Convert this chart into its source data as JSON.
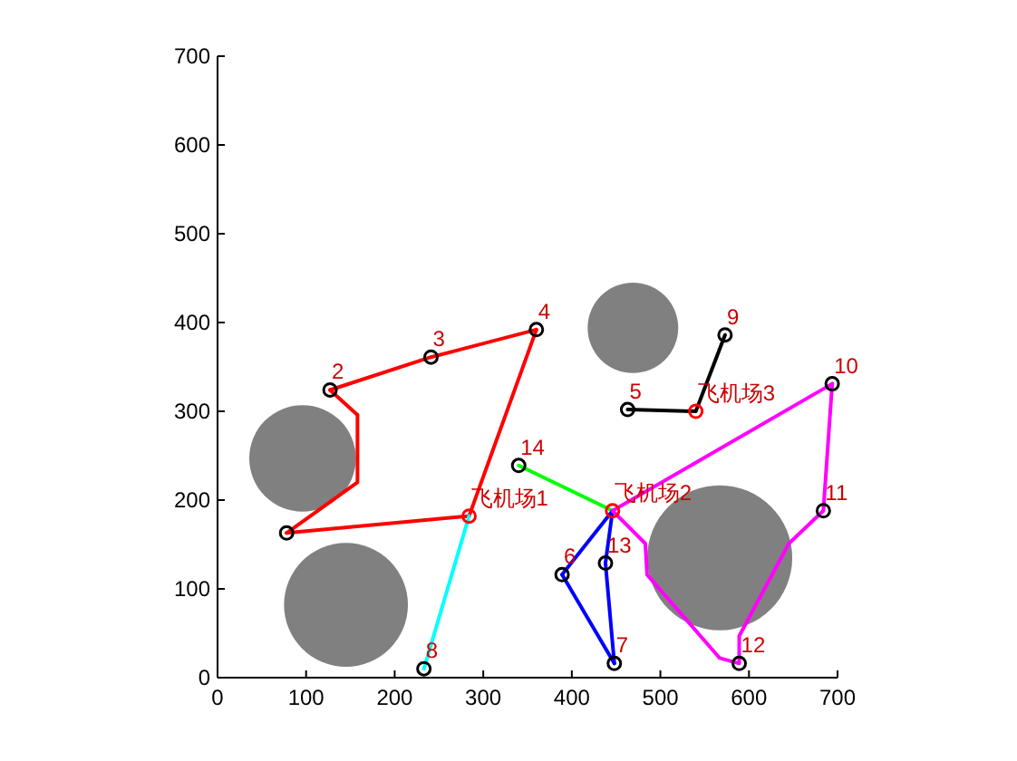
{
  "chart_data": {
    "type": "line",
    "xlim": [
      0,
      700
    ],
    "ylim": [
      0,
      700
    ],
    "xticks": [
      0,
      100,
      200,
      300,
      400,
      500,
      600,
      700
    ],
    "yticks": [
      0,
      100,
      200,
      300,
      400,
      500,
      600,
      700
    ],
    "grid": false,
    "series": [
      {
        "type": "bubble",
        "color": "#808080",
        "x": [
          96,
          145,
          469,
          567
        ],
        "values": [
          247,
          82,
          394,
          135
        ],
        "sizes": [
          0.54,
          0.73,
          0.39,
          1
        ]
      },
      {
        "color": "#ff0000",
        "marker": "none",
        "line_style": "solid",
        "x": [
          78,
          284
        ],
        "values": [
          163,
          182
        ]
      },
      {
        "color": "#ff0000",
        "marker": "none",
        "line_style": "solid",
        "x": [
          78,
          158,
          158
        ],
        "values": [
          163,
          220,
          296
        ]
      },
      {
        "color": "#ff0000",
        "marker": "none",
        "line_style": "solid",
        "x": [
          127,
          158
        ],
        "values": [
          324,
          296
        ]
      },
      {
        "color": "#ff0000",
        "marker": "none",
        "line_style": "solid",
        "x": [
          127,
          241,
          360
        ],
        "values": [
          324,
          361,
          392
        ]
      },
      {
        "color": "#ff0000",
        "marker": "none",
        "line_style": "solid",
        "x": [
          284,
          360
        ],
        "values": [
          182,
          392
        ]
      },
      {
        "color": "#00ffff",
        "marker": "none",
        "line_style": "solid",
        "x": [
          284,
          233
        ],
        "values": [
          182,
          10
        ]
      },
      {
        "color": "#00ff00",
        "marker": "none",
        "line_style": "solid",
        "x": [
          340,
          446
        ],
        "values": [
          239,
          188
        ]
      },
      {
        "color": "#0000ff",
        "marker": "none",
        "line_style": "solid",
        "x": [
          389,
          446
        ],
        "values": [
          116,
          188
        ]
      },
      {
        "color": "#0000ff",
        "marker": "none",
        "line_style": "solid",
        "x": [
          389,
          448
        ],
        "values": [
          116,
          16
        ]
      },
      {
        "color": "#0000ff",
        "marker": "none",
        "line_style": "solid",
        "x": [
          438,
          448
        ],
        "values": [
          129,
          16
        ]
      },
      {
        "color": "#0000ff",
        "marker": "none",
        "line_style": "solid",
        "x": [
          438,
          446
        ],
        "values": [
          129,
          188
        ]
      },
      {
        "color": "#000000",
        "marker": "none",
        "line_style": "solid",
        "x": [
          463,
          540,
          573
        ],
        "values": [
          302,
          300,
          386
        ]
      },
      {
        "color": "#ff00ff",
        "marker": "none",
        "line_style": "solid",
        "x": [
          446,
          694
        ],
        "values": [
          188,
          331
        ]
      },
      {
        "color": "#ff00ff",
        "marker": "none",
        "line_style": "solid",
        "x": [
          446,
          483,
          485,
          567,
          589,
          589,
          645,
          684,
          694
        ],
        "values": [
          188,
          151,
          116,
          22,
          16,
          47,
          151,
          188,
          331
        ]
      },
      {
        "type": "scatter",
        "color": "#000000",
        "marker": "circle",
        "x": [
          78,
          127,
          241,
          360,
          463,
          389,
          448,
          233,
          573,
          694,
          684,
          589,
          438,
          340
        ],
        "values": [
          163,
          324,
          361,
          392,
          302,
          116,
          16,
          10,
          386,
          331,
          188,
          16,
          129,
          239
        ]
      },
      {
        "type": "scatter",
        "color": "#ff0000",
        "marker": "circle",
        "x": [
          284,
          446,
          540
        ],
        "values": [
          182,
          188,
          300
        ]
      }
    ],
    "annotations": [
      {
        "text": "2",
        "x": 127,
        "y": 324
      },
      {
        "text": "3",
        "x": 241,
        "y": 361
      },
      {
        "text": "4",
        "x": 360,
        "y": 392
      },
      {
        "text": "5",
        "x": 463,
        "y": 302
      },
      {
        "text": "6",
        "x": 389,
        "y": 116
      },
      {
        "text": "7",
        "x": 448,
        "y": 16
      },
      {
        "text": "8",
        "x": 233,
        "y": 10
      },
      {
        "text": "9",
        "x": 573,
        "y": 386
      },
      {
        "text": "10",
        "x": 694,
        "y": 331
      },
      {
        "text": "11",
        "x": 684,
        "y": 188
      },
      {
        "text": "12",
        "x": 589,
        "y": 16
      },
      {
        "text": "13",
        "x": 438,
        "y": 129
      },
      {
        "text": "14",
        "x": 340,
        "y": 239
      },
      {
        "text": "飞机场1",
        "x": 284,
        "y": 182
      },
      {
        "text": "飞机场2",
        "x": 446,
        "y": 188
      },
      {
        "text": "飞机场3",
        "x": 540,
        "y": 300
      }
    ]
  }
}
